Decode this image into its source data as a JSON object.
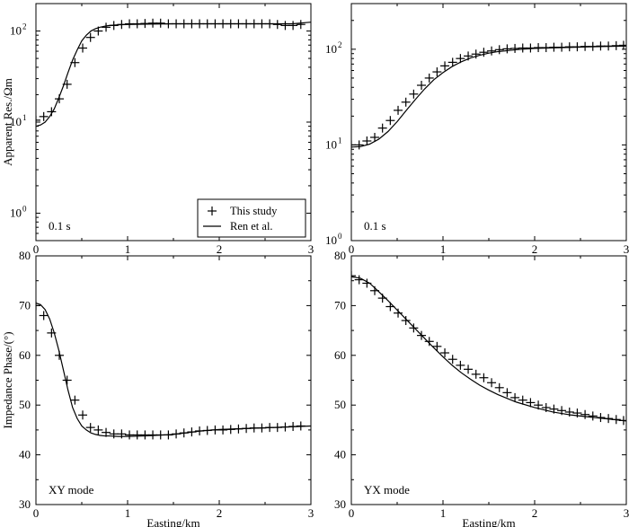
{
  "chart_data": [
    {
      "type": "line",
      "panel": "top-left",
      "ylabel": "Apparent Res./Ωm",
      "xlabel": "",
      "yscale": "log",
      "ylim": [
        0.5,
        200
      ],
      "xlim": [
        0,
        3
      ],
      "xticks": [
        "0",
        "1",
        "2",
        "3"
      ],
      "yticks": [
        {
          "value": 1,
          "base": "10",
          "exp": "0"
        },
        {
          "value": 10,
          "base": "10",
          "exp": "1"
        },
        {
          "value": 100,
          "base": "10",
          "exp": "2"
        }
      ],
      "annotation": "0.1 s",
      "legend": {
        "position": "bottom-right",
        "entries": [
          {
            "label": "This study",
            "marker": "plus"
          },
          {
            "label": "Ren et al.",
            "marker": "line"
          }
        ]
      },
      "series": [
        {
          "name": "This study",
          "style": "plus",
          "x": [
            0.0,
            0.085,
            0.17,
            0.255,
            0.34,
            0.425,
            0.51,
            0.595,
            0.68,
            0.765,
            0.85,
            0.935,
            1.02,
            1.105,
            1.19,
            1.275,
            1.36,
            1.445,
            1.53,
            1.615,
            1.7,
            1.785,
            1.87,
            1.955,
            2.04,
            2.125,
            2.21,
            2.295,
            2.38,
            2.465,
            2.55,
            2.635,
            2.72,
            2.805,
            2.89
          ],
          "y": [
            10.5,
            11.5,
            13,
            18,
            26,
            45,
            65,
            85,
            100,
            110,
            115,
            118,
            120,
            120,
            121,
            122,
            122,
            120,
            120,
            120,
            120,
            120,
            120,
            120,
            120,
            120,
            120,
            120,
            120,
            120,
            120,
            118,
            115,
            115,
            118
          ]
        },
        {
          "name": "Ren et al.",
          "style": "line",
          "x": [
            0.0,
            0.05,
            0.1,
            0.15,
            0.2,
            0.25,
            0.3,
            0.35,
            0.4,
            0.45,
            0.5,
            0.55,
            0.6,
            0.65,
            0.7,
            0.75,
            0.8,
            0.9,
            1.0,
            1.2,
            1.5,
            2.0,
            2.5,
            2.8,
            3.0
          ],
          "y": [
            9,
            9.3,
            10,
            11.5,
            14,
            18.5,
            25,
            35,
            48,
            62,
            78,
            90,
            100,
            106,
            110,
            113,
            115,
            117,
            118,
            119,
            120,
            120,
            120,
            120,
            125
          ]
        }
      ]
    },
    {
      "type": "line",
      "panel": "top-right",
      "ylabel": "",
      "xlabel": "",
      "yscale": "log",
      "ylim": [
        1,
        300
      ],
      "xlim": [
        0,
        3
      ],
      "xticks": [
        "0",
        "1",
        "2",
        "3"
      ],
      "yticks": [
        {
          "value": 1,
          "base": "10",
          "exp": "0"
        },
        {
          "value": 10,
          "base": "10",
          "exp": "1"
        },
        {
          "value": 100,
          "base": "10",
          "exp": "2"
        }
      ],
      "annotation": "0.1 s",
      "series": [
        {
          "name": "This study",
          "style": "plus",
          "x": [
            0.0,
            0.085,
            0.17,
            0.255,
            0.34,
            0.425,
            0.51,
            0.595,
            0.68,
            0.765,
            0.85,
            0.935,
            1.02,
            1.105,
            1.19,
            1.275,
            1.36,
            1.445,
            1.53,
            1.615,
            1.7,
            1.785,
            1.87,
            1.955,
            2.04,
            2.125,
            2.21,
            2.295,
            2.38,
            2.465,
            2.55,
            2.635,
            2.72,
            2.805,
            2.89,
            2.97
          ],
          "y": [
            10,
            10,
            11,
            12,
            15,
            18,
            23,
            28,
            34,
            42,
            50,
            58,
            67,
            73,
            80,
            85,
            89,
            93,
            96,
            99,
            101,
            102,
            103,
            103,
            104,
            104,
            105,
            105,
            106,
            106,
            107,
            107,
            108,
            108,
            109,
            110
          ]
        },
        {
          "name": "Ren et al.",
          "style": "line",
          "x": [
            0.0,
            0.1,
            0.2,
            0.3,
            0.4,
            0.5,
            0.6,
            0.7,
            0.8,
            0.9,
            1.0,
            1.1,
            1.2,
            1.3,
            1.4,
            1.5,
            1.6,
            1.8,
            2.0,
            2.3,
            2.6,
            3.0
          ],
          "y": [
            9.5,
            9.6,
            10.2,
            11.5,
            13.8,
            17.5,
            23,
            30,
            38.5,
            48,
            57,
            66,
            74,
            81,
            86.5,
            91,
            94.5,
            99,
            102,
            104,
            106,
            108
          ]
        }
      ]
    },
    {
      "type": "line",
      "panel": "bottom-left",
      "ylabel": "Impedance Phase/(°)",
      "xlabel": "Easting/km",
      "yscale": "linear",
      "ylim": [
        30,
        80
      ],
      "xlim": [
        0,
        3
      ],
      "xticks": [
        "0",
        "1",
        "2",
        "3"
      ],
      "yticks": [
        "30",
        "40",
        "50",
        "60",
        "70",
        "80"
      ],
      "annotation": "XY mode",
      "series": [
        {
          "name": "This study",
          "style": "plus",
          "x": [
            0.0,
            0.085,
            0.17,
            0.255,
            0.34,
            0.425,
            0.51,
            0.595,
            0.68,
            0.765,
            0.85,
            0.935,
            1.02,
            1.105,
            1.19,
            1.275,
            1.36,
            1.445,
            1.53,
            1.615,
            1.7,
            1.785,
            1.87,
            1.955,
            2.04,
            2.125,
            2.21,
            2.295,
            2.38,
            2.465,
            2.55,
            2.635,
            2.72,
            2.805,
            2.89
          ],
          "y": [
            70,
            68,
            64.5,
            60,
            55,
            51,
            48,
            45.5,
            45,
            44.5,
            44.2,
            44.2,
            44,
            44,
            44,
            44,
            44,
            44,
            44.2,
            44.4,
            44.6,
            44.8,
            44.9,
            45,
            45,
            45.1,
            45.2,
            45.3,
            45.4,
            45.4,
            45.5,
            45.5,
            45.6,
            45.7,
            45.8
          ]
        },
        {
          "name": "Ren et al.",
          "style": "line",
          "x": [
            0.0,
            0.05,
            0.1,
            0.15,
            0.2,
            0.25,
            0.3,
            0.35,
            0.4,
            0.45,
            0.5,
            0.55,
            0.6,
            0.65,
            0.7,
            0.75,
            0.8,
            0.9,
            1.0,
            1.2,
            1.5,
            1.8,
            2.0,
            2.3,
            2.6,
            3.0
          ],
          "y": [
            70.5,
            70.2,
            69.2,
            67.3,
            64.5,
            61,
            57,
            53,
            49.5,
            47.3,
            45.8,
            45,
            44.4,
            44.1,
            43.9,
            43.8,
            43.8,
            43.7,
            43.7,
            43.8,
            44.1,
            44.8,
            45.1,
            45.3,
            45.5,
            45.8
          ]
        }
      ]
    },
    {
      "type": "line",
      "panel": "bottom-right",
      "ylabel": "",
      "xlabel": "Easting/km",
      "yscale": "linear",
      "ylim": [
        30,
        80
      ],
      "xlim": [
        0,
        3
      ],
      "xticks": [
        "0",
        "1",
        "2",
        "3"
      ],
      "yticks": [
        "30",
        "40",
        "50",
        "60",
        "70",
        "80"
      ],
      "annotation": "YX mode",
      "series": [
        {
          "name": "This study",
          "style": "plus",
          "x": [
            0.0,
            0.085,
            0.17,
            0.255,
            0.34,
            0.425,
            0.51,
            0.595,
            0.68,
            0.765,
            0.85,
            0.935,
            1.02,
            1.105,
            1.19,
            1.275,
            1.36,
            1.445,
            1.53,
            1.615,
            1.7,
            1.785,
            1.87,
            1.955,
            2.04,
            2.125,
            2.21,
            2.295,
            2.38,
            2.465,
            2.55,
            2.635,
            2.72,
            2.805,
            2.89,
            2.97
          ],
          "y": [
            76,
            75.2,
            74.5,
            73,
            71.5,
            69.8,
            68.5,
            67,
            65.5,
            64,
            62.8,
            61.8,
            60.5,
            59.2,
            58,
            57.2,
            56.2,
            55.5,
            54.5,
            53.5,
            52.5,
            51.5,
            51,
            50.5,
            50,
            49.5,
            49.2,
            48.9,
            48.6,
            48.4,
            48.1,
            47.8,
            47.5,
            47.3,
            47.1,
            46.9
          ]
        },
        {
          "name": "Ren et al.",
          "style": "line",
          "x": [
            0.0,
            0.1,
            0.2,
            0.3,
            0.4,
            0.5,
            0.6,
            0.7,
            0.8,
            0.9,
            1.0,
            1.1,
            1.2,
            1.3,
            1.4,
            1.5,
            1.6,
            1.8,
            2.0,
            2.2,
            2.4,
            2.6,
            2.8,
            3.0
          ],
          "y": [
            75.8,
            75.5,
            74.5,
            72.8,
            71,
            69.1,
            67.2,
            65.3,
            63.4,
            61.5,
            59.7,
            58,
            56.5,
            55.2,
            54,
            53,
            52.1,
            50.6,
            49.5,
            48.6,
            48,
            47.6,
            47.2,
            46.8
          ]
        }
      ]
    }
  ]
}
